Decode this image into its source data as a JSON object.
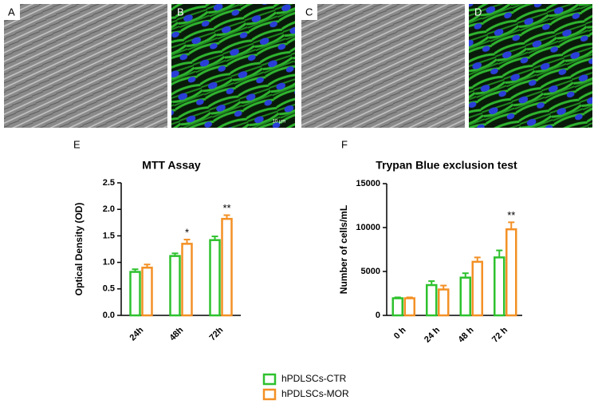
{
  "panels": [
    "A",
    "B",
    "C",
    "D",
    "E",
    "F"
  ],
  "scale_bar": "10 µm",
  "chart_data": [
    {
      "type": "bar",
      "title": "MTT Assay",
      "ylabel": "Optical Density (OD)",
      "categories": [
        "24h",
        "48h",
        "72h"
      ],
      "series": [
        {
          "name": "hPDLSCs-CTR",
          "color": "#2ec12e",
          "values": [
            0.82,
            1.12,
            1.42
          ],
          "errors": [
            0.05,
            0.05,
            0.07
          ]
        },
        {
          "name": "hPDLSCs-MOR",
          "color": "#f39025",
          "values": [
            0.9,
            1.35,
            1.82
          ],
          "errors": [
            0.06,
            0.08,
            0.07
          ]
        }
      ],
      "ylim": [
        0,
        2.5
      ],
      "yticks": [
        {
          "value": 0,
          "label": "0.0"
        },
        0.5,
        {
          "value": 1,
          "label": "1.0"
        },
        1.5,
        {
          "value": 2,
          "label": "2.0"
        },
        2.5
      ],
      "annotations": [
        {
          "text": "*",
          "x": "48h"
        },
        {
          "text": "**",
          "x": "72h"
        }
      ]
    },
    {
      "type": "bar",
      "title": "Trypan Blue exclusion test",
      "ylabel": "Number of cells/mL",
      "categories": [
        "0 h",
        "24 h",
        "48 h",
        "72 h"
      ],
      "series": [
        {
          "color": "#2ec12e",
          "values": [
            1950,
            3450,
            4300,
            6600
          ],
          "errors": [
            100,
            450,
            500,
            800
          ]
        },
        {
          "color": "#f39025",
          "values": [
            1950,
            2950,
            6100,
            9800
          ],
          "errors": [
            100,
            450,
            500,
            800
          ]
        }
      ],
      "ylim": [
        0,
        15000
      ],
      "yticks": [
        0,
        5000,
        10000,
        15000
      ],
      "annotations": [
        {
          "text": "**",
          "x": "72 h"
        }
      ]
    }
  ]
}
